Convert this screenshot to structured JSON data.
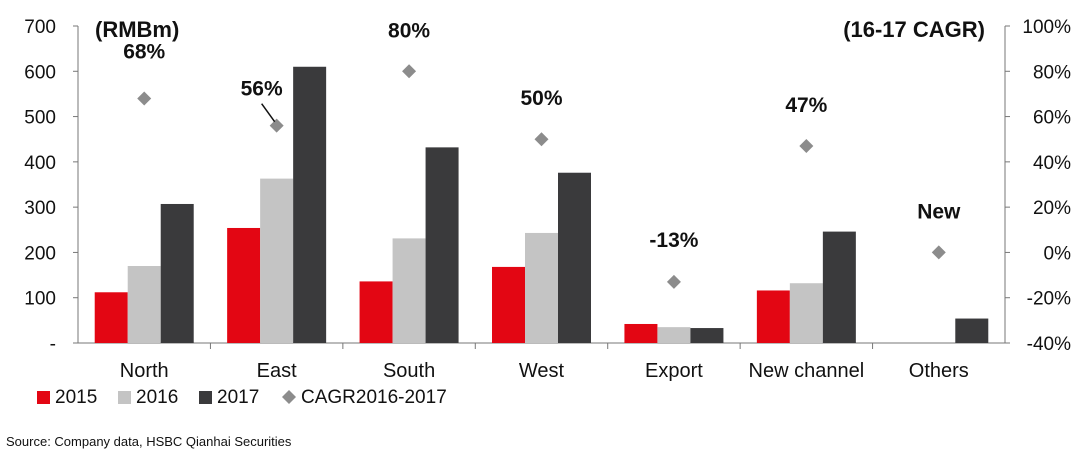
{
  "chart_data": {
    "type": "bar",
    "title": "",
    "left_unit_label": "(RMBm)",
    "right_unit_label": "(16-17 CAGR)",
    "categories": [
      "North",
      "East",
      "South",
      "West",
      "Export",
      "New channel",
      "Others"
    ],
    "series": [
      {
        "name": "2015",
        "color": "#e30613",
        "values": [
          112,
          254,
          136,
          168,
          42,
          116,
          null
        ]
      },
      {
        "name": "2016",
        "color": "#c4c4c4",
        "values": [
          170,
          363,
          231,
          243,
          35,
          132,
          null
        ]
      },
      {
        "name": "2017",
        "color": "#3a3a3c",
        "values": [
          307,
          610,
          432,
          376,
          33,
          246,
          54
        ]
      }
    ],
    "cagr_series": {
      "name": "CAGR2016-2017",
      "color": "#8c8c8c",
      "values": [
        68,
        56,
        80,
        50,
        -13,
        47,
        0
      ],
      "labels": [
        "68%",
        "56%",
        "80%",
        "50%",
        "-13%",
        "47%",
        "New"
      ]
    },
    "y_left": {
      "min": 0,
      "max": 700,
      "ticks": [
        "-",
        "100",
        "200",
        "300",
        "400",
        "500",
        "600",
        "700"
      ]
    },
    "y_right": {
      "min": -40,
      "max": 100,
      "ticks": [
        "-40%",
        "-20%",
        "0%",
        "20%",
        "40%",
        "60%",
        "80%",
        "100%"
      ]
    },
    "legend": [
      "2015",
      "2016",
      "2017",
      "CAGR2016-2017"
    ],
    "legend_position": "bottom-left"
  },
  "footer": {
    "source": "Source: Company data, HSBC Qianhai Securities"
  }
}
